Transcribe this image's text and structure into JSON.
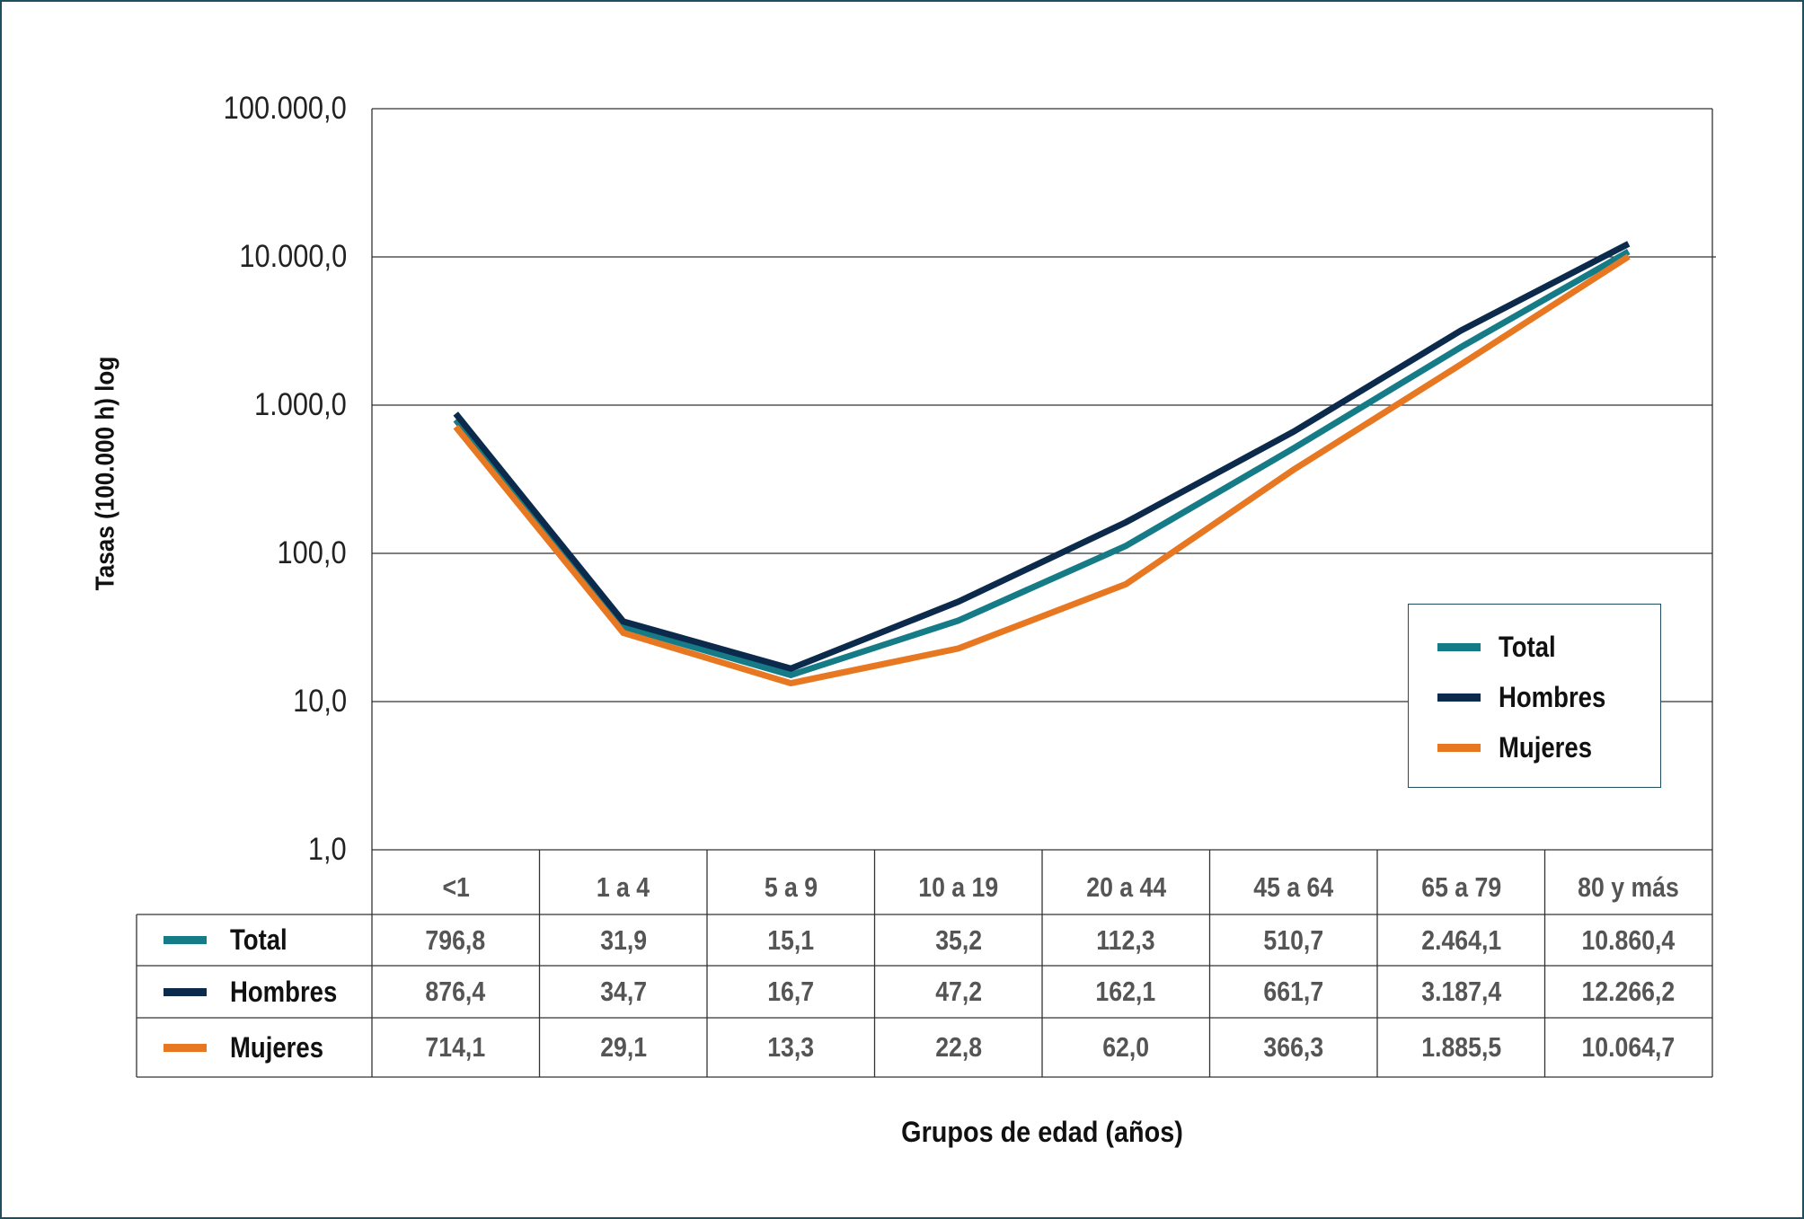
{
  "chart_data": {
    "type": "line",
    "title": "",
    "xlabel": "Grupos de edad (años)",
    "ylabel": "Tasas (100.000 h) log",
    "y_scale": "log",
    "ylim": [
      1,
      100000
    ],
    "y_ticks": [
      "1,0",
      "10,0",
      "100,0",
      "1.000,0",
      "10.000,0",
      "100.000,0"
    ],
    "y_tick_values": [
      1,
      10,
      100,
      1000,
      10000,
      100000
    ],
    "grid": "horizontal",
    "legend_position": "right",
    "categories": [
      "<1",
      "1 a 4",
      "5 a 9",
      "10 a 19",
      "20 a 44",
      "45 a 64",
      "65 a 79",
      "80 y más"
    ],
    "series": [
      {
        "name": "Total",
        "color": "#157b87",
        "values": [
          796.8,
          31.9,
          15.1,
          35.2,
          112.3,
          510.7,
          2464.1,
          10860.4
        ],
        "labels": [
          "796,8",
          "31,9",
          "15,1",
          "35,2",
          "112,3",
          "510,7",
          "2.464,1",
          "10.860,4"
        ]
      },
      {
        "name": "Hombres",
        "color": "#0c2a4b",
        "values": [
          876.4,
          34.7,
          16.7,
          47.2,
          162.1,
          661.7,
          3187.4,
          12266.2
        ],
        "labels": [
          "876,4",
          "34,7",
          "16,7",
          "47,2",
          "162,1",
          "661,7",
          "3.187,4",
          "12.266,2"
        ]
      },
      {
        "name": "Mujeres",
        "color": "#e87722",
        "values": [
          714.1,
          29.1,
          13.3,
          22.8,
          62.0,
          366.3,
          1885.5,
          10064.7
        ],
        "labels": [
          "714,1",
          "29,1",
          "13,3",
          "22,8",
          "62,0",
          "366,3",
          "1.885,5",
          "10.064,7"
        ]
      }
    ]
  }
}
